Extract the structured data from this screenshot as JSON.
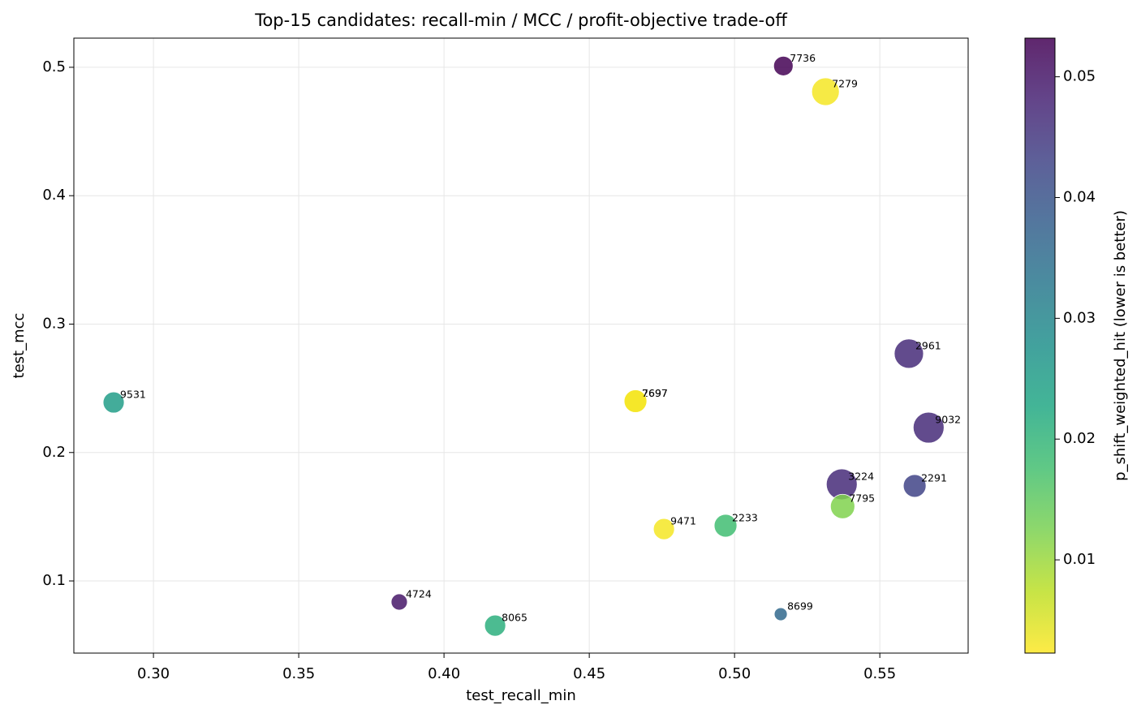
{
  "chart_data": {
    "type": "scatter",
    "title": "Top-15 candidates: recall-min / MCC / profit-objective trade-off",
    "xlabel": "test_recall_min",
    "ylabel": "test_mcc",
    "colorbar_label": "p_shift_weighted_hit (lower is better)",
    "colormap": "viridis_r",
    "labels": [
      "9531",
      "7736",
      "7279",
      "2961",
      "9032",
      "3224",
      "2291",
      "7795",
      "2233",
      "9471",
      "2697",
      "7697",
      "4724",
      "8065",
      "8699"
    ],
    "x": [
      0.2863,
      0.5168,
      0.5313,
      0.56,
      0.5668,
      0.5369,
      0.562,
      0.5372,
      0.4969,
      0.4757,
      0.4659,
      0.4659,
      0.3846,
      0.4176,
      0.5159
    ],
    "y": [
      0.239,
      0.501,
      0.481,
      0.277,
      0.2194,
      0.1752,
      0.174,
      0.158,
      0.143,
      0.1404,
      0.24,
      0.24,
      0.0836,
      0.0652,
      0.0741
    ],
    "sizes": [
      169,
      144,
      289,
      324,
      361,
      361,
      196,
      225,
      196,
      169,
      196,
      196,
      100,
      169,
      64
    ],
    "colors_values": [
      0.025,
      0.053,
      0.003,
      0.047,
      0.047,
      0.047,
      0.043,
      0.012,
      0.018,
      0.003,
      0.003,
      0.003,
      0.05,
      0.021,
      0.036
    ],
    "xlim": [
      0.2726,
      0.5804
    ],
    "ylim": [
      0.0438,
      0.5227
    ],
    "clim": [
      0.00228,
      0.0532
    ],
    "xticks": [
      {
        "value": 0.3,
        "label": "0.30"
      },
      {
        "value": 0.35,
        "label": "0.35"
      },
      {
        "value": 0.4,
        "label": "0.40"
      },
      {
        "value": 0.45,
        "label": "0.45"
      },
      {
        "value": 0.5,
        "label": "0.50"
      },
      {
        "value": 0.55,
        "label": "0.55"
      }
    ],
    "yticks": [
      0.1,
      0.2,
      0.3,
      0.4,
      0.5
    ],
    "cticks": [
      0.01,
      0.02,
      0.03,
      0.04,
      0.05
    ],
    "grid": true
  }
}
